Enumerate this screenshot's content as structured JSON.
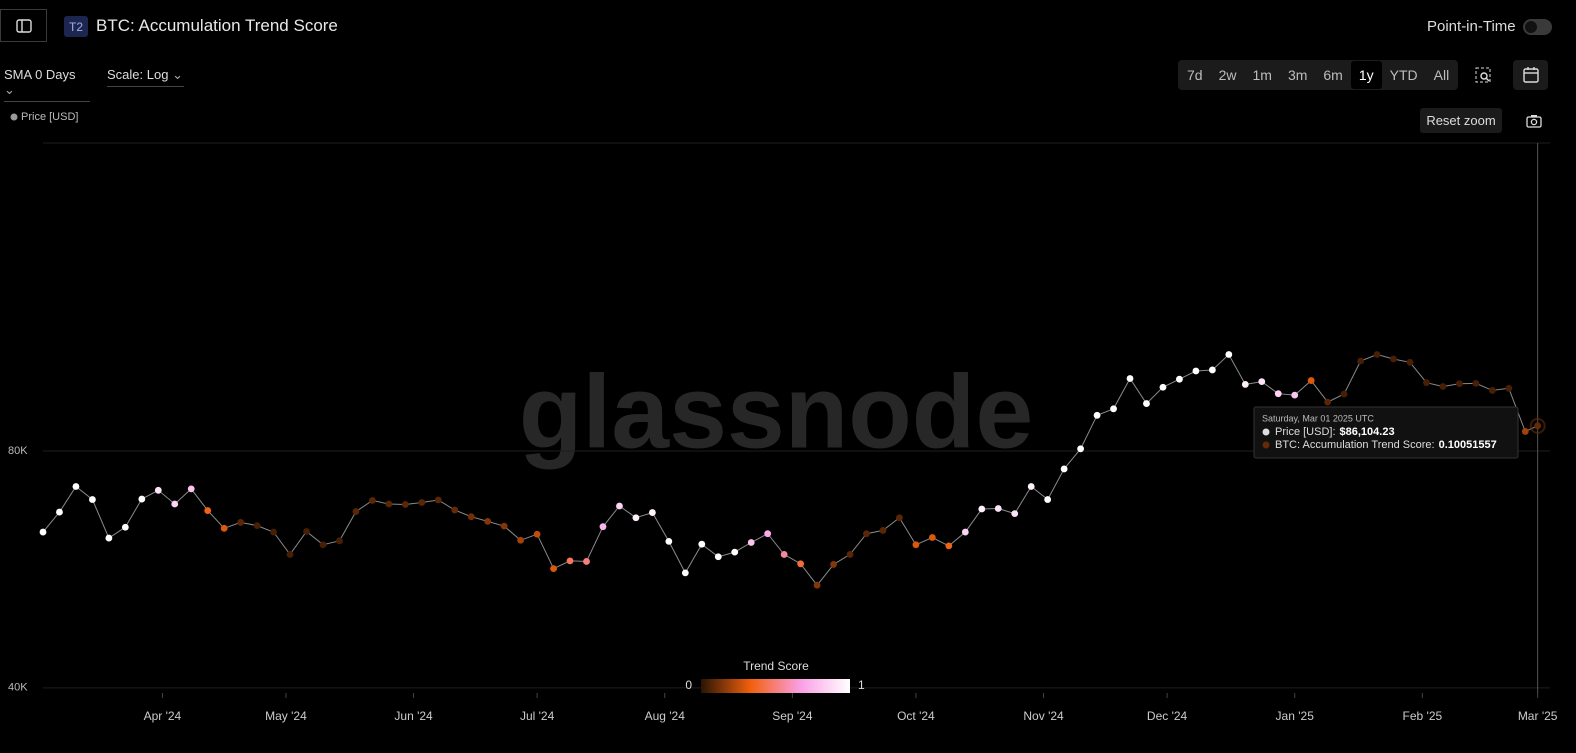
{
  "header": {
    "badge": "T2",
    "title": "BTC: Accumulation Trend Score",
    "toggle_label": "Point-in-Time"
  },
  "controls": {
    "sma": "SMA 0 Days",
    "scale": "Scale: Log",
    "ranges": [
      "7d",
      "2w",
      "1m",
      "3m",
      "6m",
      "1y",
      "YTD",
      "All"
    ],
    "active_range": "1y",
    "reset": "Reset zoom"
  },
  "chart_data": {
    "type": "scatter",
    "watermark": "glassnode",
    "log_scale": true,
    "grid": true,
    "xlim": [
      "2024-03-03",
      "2025-03-04"
    ],
    "xticks": [
      {
        "value": "2024-04-01",
        "label": "Apr '24"
      },
      {
        "value": "2024-05-01",
        "label": "May '24"
      },
      {
        "value": "2024-06-01",
        "label": "Jun '24"
      },
      {
        "value": "2024-07-01",
        "label": "Jul '24"
      },
      {
        "value": "2024-08-01",
        "label": "Aug '24"
      },
      {
        "value": "2024-09-01",
        "label": "Sep '24"
      },
      {
        "value": "2024-10-01",
        "label": "Oct '24"
      },
      {
        "value": "2024-11-01",
        "label": "Nov '24"
      },
      {
        "value": "2024-12-01",
        "label": "Dec '24"
      },
      {
        "value": "2025-01-01",
        "label": "Jan '25"
      },
      {
        "value": "2025-02-01",
        "label": "Feb '25"
      },
      {
        "value": "2025-03-01",
        "label": "Mar '25"
      }
    ],
    "ylim": [
      39400,
      197000
    ],
    "yticks": [
      {
        "value": 40000,
        "label": "40K"
      },
      {
        "value": 80000,
        "label": "80K"
      }
    ],
    "colorbar": {
      "title": "Trend Score",
      "min": 0,
      "max": 1
    },
    "colorscale": [
      "#2a1404",
      "#f2600c",
      "#fa9fe6",
      "#ffffff"
    ],
    "line_color": "#8a8a8a",
    "x": [
      "2024-03-03",
      "2024-03-07",
      "2024-03-11",
      "2024-03-15",
      "2024-03-19",
      "2024-03-23",
      "2024-03-27",
      "2024-03-31",
      "2024-04-04",
      "2024-04-08",
      "2024-04-12",
      "2024-04-16",
      "2024-04-20",
      "2024-04-24",
      "2024-04-28",
      "2024-05-02",
      "2024-05-06",
      "2024-05-10",
      "2024-05-14",
      "2024-05-18",
      "2024-05-22",
      "2024-05-26",
      "2024-05-30",
      "2024-06-03",
      "2024-06-07",
      "2024-06-11",
      "2024-06-15",
      "2024-06-19",
      "2024-06-23",
      "2024-06-27",
      "2024-07-01",
      "2024-07-05",
      "2024-07-09",
      "2024-07-13",
      "2024-07-17",
      "2024-07-21",
      "2024-07-25",
      "2024-07-29",
      "2024-08-02",
      "2024-08-06",
      "2024-08-10",
      "2024-08-14",
      "2024-08-18",
      "2024-08-22",
      "2024-08-26",
      "2024-08-30",
      "2024-09-03",
      "2024-09-07",
      "2024-09-11",
      "2024-09-15",
      "2024-09-19",
      "2024-09-23",
      "2024-09-27",
      "2024-10-01",
      "2024-10-05",
      "2024-10-09",
      "2024-10-13",
      "2024-10-17",
      "2024-10-21",
      "2024-10-25",
      "2024-10-29",
      "2024-11-02",
      "2024-11-06",
      "2024-11-10",
      "2024-11-14",
      "2024-11-18",
      "2024-11-22",
      "2024-11-26",
      "2024-11-30",
      "2024-12-04",
      "2024-12-08",
      "2024-12-12",
      "2024-12-16",
      "2024-12-20",
      "2024-12-24",
      "2024-12-28",
      "2025-01-01",
      "2025-01-05",
      "2025-01-09",
      "2025-01-13",
      "2025-01-17",
      "2025-01-21",
      "2025-01-25",
      "2025-01-29",
      "2025-02-02",
      "2025-02-06",
      "2025-02-10",
      "2025-02-14",
      "2025-02-18",
      "2025-02-22",
      "2025-02-26",
      "2025-03-01"
    ],
    "series": [
      {
        "name": "Price [USD]",
        "color": "#9a9a9a",
        "values": [
          63100,
          66900,
          72100,
          69400,
          62000,
          64000,
          69500,
          71300,
          68500,
          71600,
          67200,
          63800,
          64900,
          64300,
          63100,
          59100,
          63200,
          60800,
          61500,
          67000,
          69200,
          68500,
          68400,
          68800,
          69300,
          67300,
          66000,
          65100,
          64200,
          61600,
          62700,
          56700,
          58000,
          57900,
          64100,
          68100,
          65800,
          66800,
          61400,
          56000,
          60900,
          58700,
          59500,
          61200,
          62800,
          59100,
          57500,
          54000,
          57400,
          59100,
          62800,
          63400,
          65800,
          60800,
          62100,
          60600,
          63100,
          67500,
          67600,
          66600,
          72100,
          69400,
          75900,
          80500,
          88800,
          90500,
          98900,
          91900,
          96400,
          98700,
          101100,
          101400,
          106100,
          97200,
          98000,
          94600,
          94200,
          98300,
          92300,
          94500,
          104100,
          106100,
          104700,
          103700,
          97700,
          96600,
          97400,
          97500,
          95500,
          96100,
          84700,
          86104.23
        ],
        "color_values": [
          1,
          1,
          1,
          1,
          1,
          1,
          1,
          0.9,
          0.85,
          0.8,
          0.35,
          0.3,
          0.08,
          0.05,
          0.05,
          0.05,
          0.05,
          0.05,
          0.05,
          0.08,
          0.08,
          0.08,
          0.08,
          0.08,
          0.08,
          0.1,
          0.12,
          0.15,
          0.15,
          0.2,
          0.25,
          0.3,
          0.45,
          0.5,
          0.75,
          0.85,
          0.95,
          0.95,
          1,
          1,
          1,
          1,
          1,
          0.8,
          0.7,
          0.55,
          0.4,
          0.15,
          0.15,
          0.08,
          0.08,
          0.08,
          0.08,
          0.3,
          0.3,
          0.35,
          0.85,
          0.95,
          0.9,
          0.9,
          0.95,
          1,
          1,
          1,
          1,
          1,
          1,
          1,
          1,
          1,
          1,
          1,
          1,
          0.95,
          0.9,
          0.85,
          0.8,
          0.3,
          0.08,
          0.05,
          0.05,
          0.05,
          0.05,
          0.05,
          0.05,
          0.05,
          0.05,
          0.05,
          0.05,
          0.05,
          0.2,
          0.10051557
        ]
      }
    ],
    "tooltip": {
      "date": "Saturday, Mar 01 2025 UTC",
      "price_label": "Price [USD]:",
      "price": "$86,104.23",
      "score_label": "BTC: Accumulation Trend Score:",
      "score": "0.10051557"
    }
  }
}
